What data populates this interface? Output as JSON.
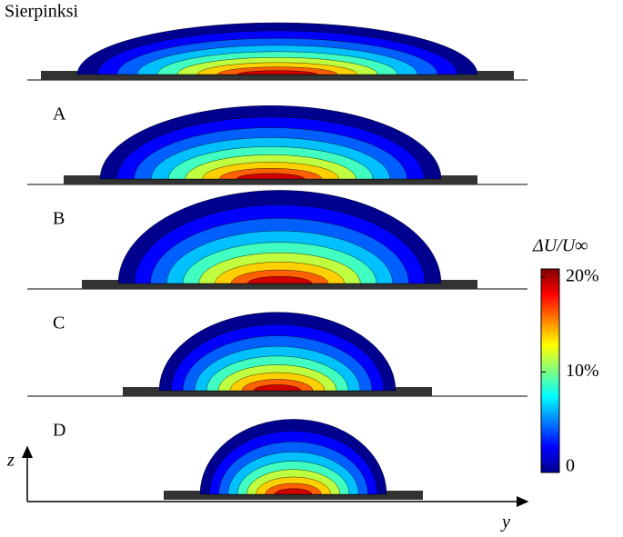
{
  "chart_data": {
    "type": "contour",
    "panels": [
      "Sierpinksi",
      "A",
      "B",
      "C",
      "D"
    ],
    "colorbar_label": "ΔU/U∞",
    "clim": [
      0,
      20
    ],
    "cticks": [
      0,
      {
        "value": 10,
        "label": "10%"
      },
      {
        "value": 20,
        "label": "20%"
      }
    ],
    "xlabel": "y",
    "ylabel": "z",
    "colormap": "jet"
  }
}
